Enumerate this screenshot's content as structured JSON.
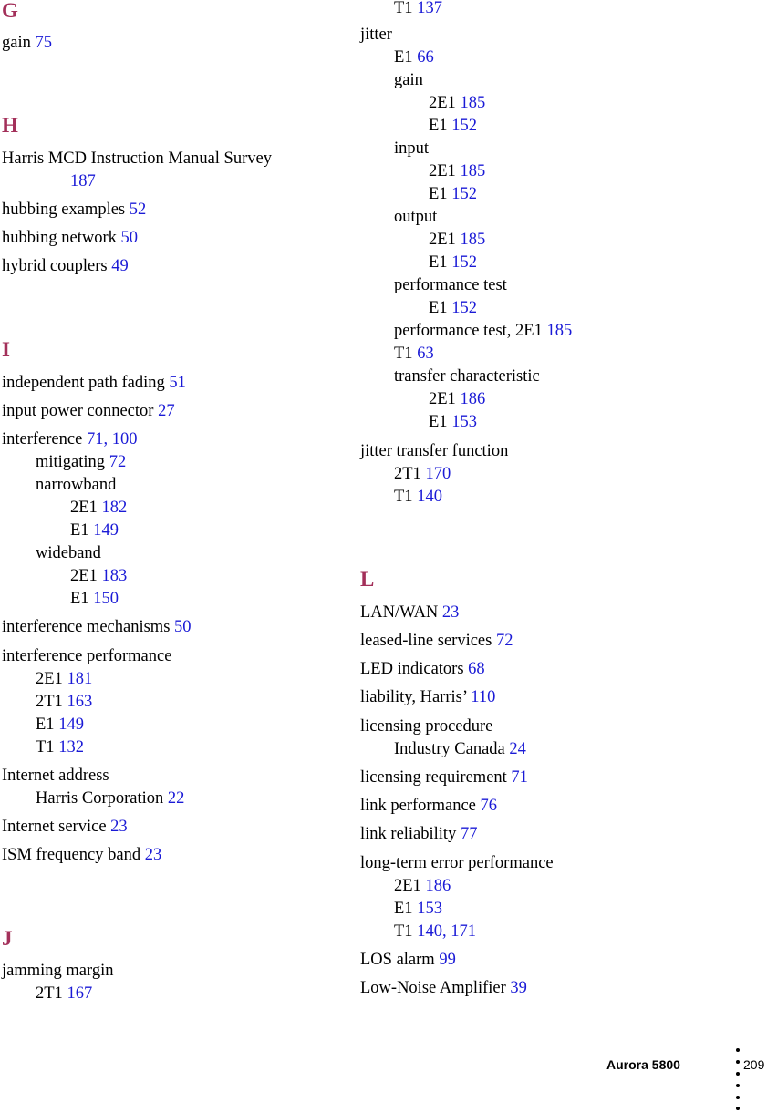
{
  "index": {
    "left_column": {
      "G": {
        "heading": "G",
        "gain": {
          "term": "gain",
          "pages": "75"
        }
      },
      "H": {
        "heading": "H",
        "harris_manual": {
          "term": "Harris MCD Instruction Manual Survey",
          "pages": "187"
        },
        "hubbing_examples": {
          "term": "hubbing examples",
          "pages": "52"
        },
        "hubbing_network": {
          "term": "hubbing network",
          "pages": "50"
        },
        "hybrid_couplers": {
          "term": "hybrid couplers",
          "pages": "49"
        }
      },
      "I": {
        "heading": "I",
        "independent_path_fading": {
          "term": "independent path fading",
          "pages": "51"
        },
        "input_power_connector": {
          "term": "input power connector",
          "pages": "27"
        },
        "interference": {
          "term": "interference",
          "pages": "71, 100",
          "mitigating": {
            "term": "mitigating",
            "pages": "72"
          },
          "narrowband": {
            "term": "narrowband",
            "e2e1": {
              "term": "2E1",
              "pages": "182"
            },
            "e1": {
              "term": "E1",
              "pages": "149"
            }
          },
          "wideband": {
            "term": "wideband",
            "e2e1": {
              "term": "2E1",
              "pages": "183"
            },
            "e1": {
              "term": "E1",
              "pages": "150"
            }
          }
        },
        "interference_mechanisms": {
          "term": "interference mechanisms",
          "pages": "50"
        },
        "interference_performance": {
          "term": "interference performance",
          "e2e1": {
            "term": "2E1",
            "pages": "181"
          },
          "t2t1": {
            "term": "2T1",
            "pages": "163"
          },
          "e1": {
            "term": "E1",
            "pages": "149"
          },
          "t1": {
            "term": "T1",
            "pages": "132"
          }
        },
        "internet_address": {
          "term": "Internet address",
          "harris_corporation": {
            "term": "Harris Corporation",
            "pages": "22"
          }
        },
        "internet_service": {
          "term": "Internet service",
          "pages": "23"
        },
        "ism_frequency_band": {
          "term": "ISM frequency band",
          "pages": "23"
        }
      },
      "J": {
        "heading": "J",
        "jamming_margin": {
          "term": "jamming margin",
          "t2t1": {
            "term": "2T1",
            "pages": "167"
          }
        }
      }
    },
    "right_column": {
      "jamming_margin_cont": {
        "t1": {
          "term": "T1",
          "pages": "137"
        }
      },
      "jitter": {
        "term": "jitter",
        "e1": {
          "term": "E1",
          "pages": "66"
        },
        "gain": {
          "term": "gain",
          "e2e1": {
            "term": "2E1",
            "pages": "185"
          },
          "e1": {
            "term": "E1",
            "pages": "152"
          }
        },
        "input": {
          "term": "input",
          "e2e1": {
            "term": "2E1",
            "pages": "185"
          },
          "e1": {
            "term": "E1",
            "pages": "152"
          }
        },
        "output": {
          "term": "output",
          "e2e1": {
            "term": "2E1",
            "pages": "185"
          },
          "e1": {
            "term": "E1",
            "pages": "152"
          }
        },
        "performance_test": {
          "term": "performance test",
          "e1": {
            "term": "E1",
            "pages": "152"
          }
        },
        "performance_test_2e1": {
          "term": "performance test, 2E1",
          "pages": "185"
        },
        "t1": {
          "term": "T1",
          "pages": "63"
        },
        "transfer_characteristic": {
          "term": "transfer characteristic",
          "e2e1": {
            "term": "2E1",
            "pages": "186"
          },
          "e1": {
            "term": "E1",
            "pages": "153"
          }
        }
      },
      "jitter_transfer_function": {
        "term": "jitter transfer function",
        "t2t1": {
          "term": "2T1",
          "pages": "170"
        },
        "t1": {
          "term": "T1",
          "pages": "140"
        }
      },
      "L": {
        "heading": "L",
        "lan_wan": {
          "term": "LAN/WAN",
          "pages": "23"
        },
        "leased_line": {
          "term": "leased-line services",
          "pages": "72"
        },
        "led_indicators": {
          "term": "LED indicators",
          "pages": "68"
        },
        "liability": {
          "term": "liability, Harris’",
          "pages": "110"
        },
        "licensing_procedure": {
          "term": "licensing procedure",
          "industry_canada": {
            "term": "Industry Canada",
            "pages": "24"
          }
        },
        "licensing_requirement": {
          "term": "licensing requirement",
          "pages": "71"
        },
        "link_performance": {
          "term": "link performance",
          "pages": "76"
        },
        "link_reliability": {
          "term": "link reliability",
          "pages": "77"
        },
        "long_term_error": {
          "term": "long-term error performance",
          "e2e1": {
            "term": "2E1",
            "pages": "186"
          },
          "e1": {
            "term": "E1",
            "pages": "153"
          },
          "t1": {
            "term": "T1",
            "pages": "140, 171"
          }
        },
        "los_alarm": {
          "term": "LOS alarm",
          "pages": "99"
        },
        "low_noise_amplifier": {
          "term": "Low-Noise Amplifier",
          "pages": "39"
        }
      }
    }
  },
  "footer": {
    "title": "Aurora 5800",
    "page_number": "209"
  },
  "colors": {
    "heading": "#a3305a",
    "page_link": "#1a1ad6"
  }
}
